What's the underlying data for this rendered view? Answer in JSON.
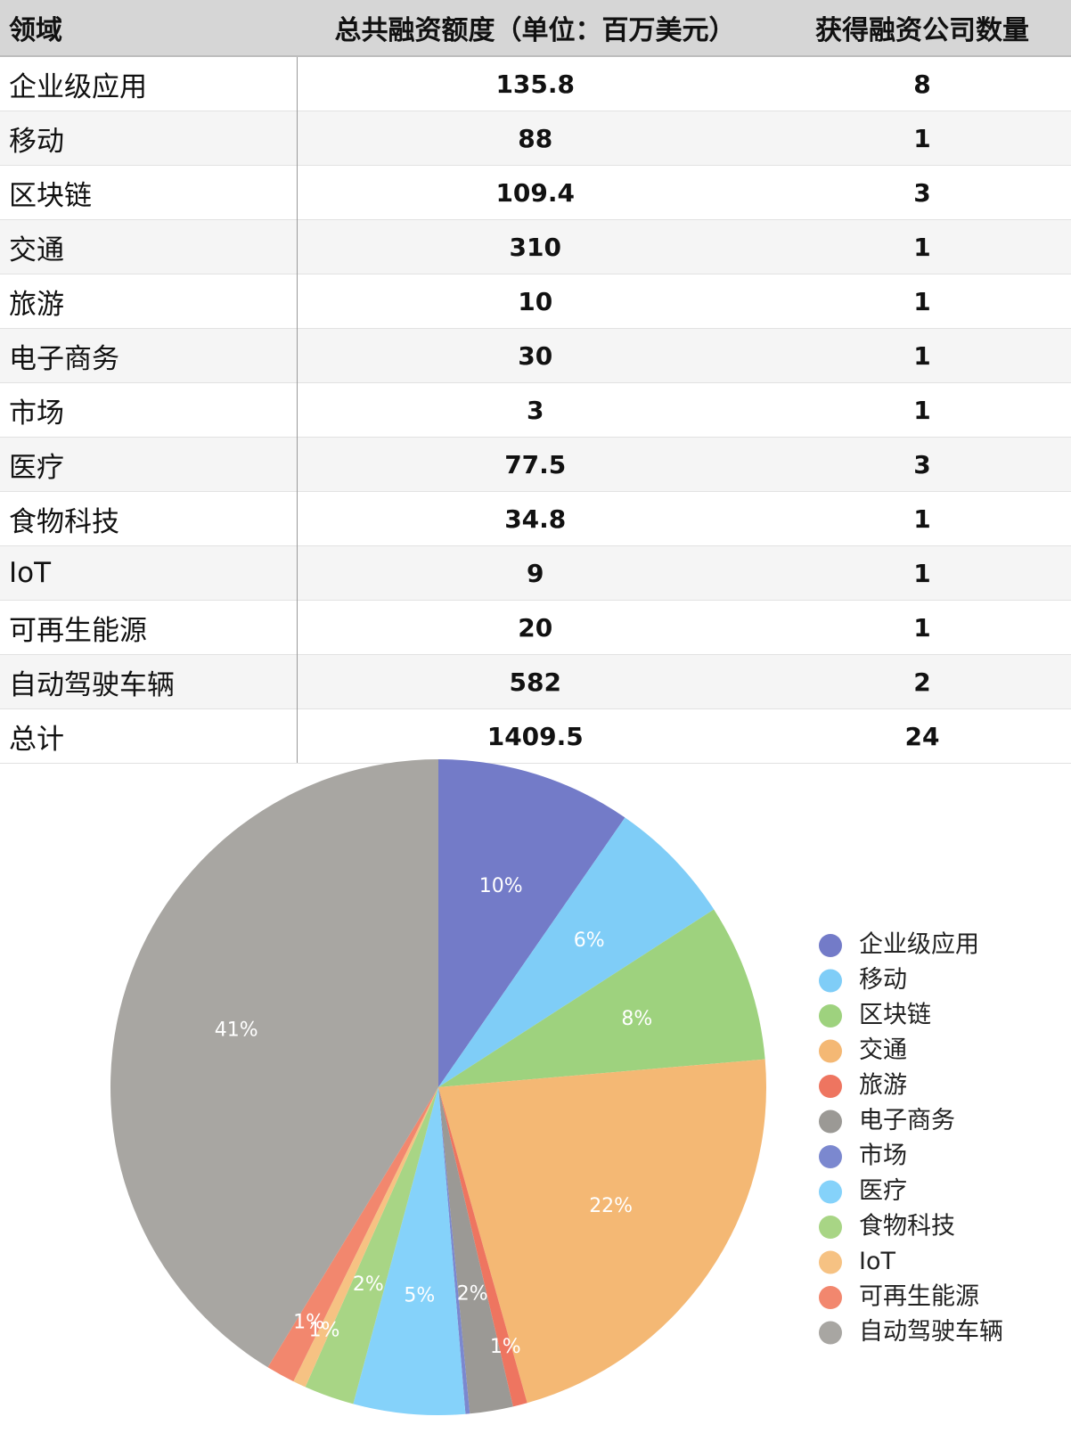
{
  "table": {
    "headers": [
      "领域",
      "总共融资额度（单位：百万美元）",
      "获得融资公司数量"
    ],
    "rows": [
      {
        "domain": "企业级应用",
        "amount": "135.8",
        "count": "8"
      },
      {
        "domain": "移动",
        "amount": "88",
        "count": "1"
      },
      {
        "domain": "区块链",
        "amount": "109.4",
        "count": "3"
      },
      {
        "domain": "交通",
        "amount": "310",
        "count": "1"
      },
      {
        "domain": "旅游",
        "amount": "10",
        "count": "1"
      },
      {
        "domain": "电子商务",
        "amount": "30",
        "count": "1"
      },
      {
        "domain": "市场",
        "amount": "3",
        "count": "1"
      },
      {
        "domain": "医疗",
        "amount": "77.5",
        "count": "3"
      },
      {
        "domain": "食物科技",
        "amount": "34.8",
        "count": "1"
      },
      {
        "domain": "IoT",
        "amount": "9",
        "count": "1"
      },
      {
        "domain": "可再生能源",
        "amount": "20",
        "count": "1"
      },
      {
        "domain": "自动驾驶车辆",
        "amount": "582",
        "count": "2"
      },
      {
        "domain": "总计",
        "amount": "1409.5",
        "count": "24"
      }
    ]
  },
  "chart_data": {
    "type": "pie",
    "categories": [
      "企业级应用",
      "移动",
      "区块链",
      "交通",
      "旅游",
      "电子商务",
      "市场",
      "医疗",
      "食物科技",
      "IoT",
      "可再生能源",
      "自动驾驶车辆"
    ],
    "values": [
      135.8,
      88,
      109.4,
      310,
      10,
      30,
      3,
      77.5,
      34.8,
      9,
      20,
      582
    ],
    "slice_labels": [
      "10%",
      "6%",
      "8%",
      "22%",
      "1%",
      "2%",
      "",
      "5%",
      "2%",
      "1%",
      "1%",
      "41%"
    ],
    "colors": [
      "#737bc8",
      "#7fcdf7",
      "#9ed27e",
      "#f4b874",
      "#ee7560",
      "#9b9995",
      "#7b88cf",
      "#85d2fa",
      "#a8d585",
      "#f6c283",
      "#f2876e",
      "#a8a6a2"
    ],
    "start_angle_deg": 0,
    "direction": "clockwise",
    "legend_position": "right"
  }
}
